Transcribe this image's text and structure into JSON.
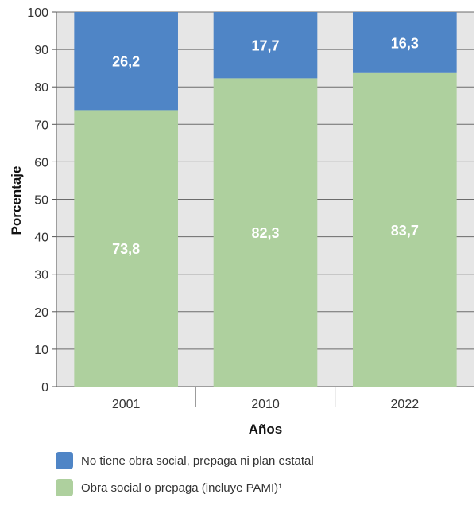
{
  "chart_data": {
    "type": "bar",
    "stacked": true,
    "categories": [
      "2001",
      "2010",
      "2022"
    ],
    "series": [
      {
        "name": "Obra social o prepaga (incluye PAMI)¹",
        "values": [
          73.8,
          82.3,
          83.7
        ],
        "labels": [
          "73,8",
          "82,3",
          "83,7"
        ],
        "color": "#aed09e"
      },
      {
        "name": "No tiene obra social, prepaga ni plan estatal",
        "values": [
          26.2,
          17.7,
          16.3
        ],
        "labels": [
          "26,2",
          "17,7",
          "16,3"
        ],
        "color": "#4f85c6"
      }
    ],
    "xlabel": "Años",
    "ylabel": "Porcentaje",
    "ylim": [
      0,
      100
    ],
    "yticks": [
      0,
      10,
      20,
      30,
      40,
      50,
      60,
      70,
      80,
      90,
      100
    ],
    "grid": true,
    "legend": "bottom-left",
    "background_color": "#e6e6e6"
  },
  "legend": [
    {
      "label": "No tiene obra social, prepaga ni plan estatal",
      "color": "#4f85c6"
    },
    {
      "label": "Obra social o prepaga (incluye PAMI)¹",
      "color": "#aed09e"
    }
  ]
}
